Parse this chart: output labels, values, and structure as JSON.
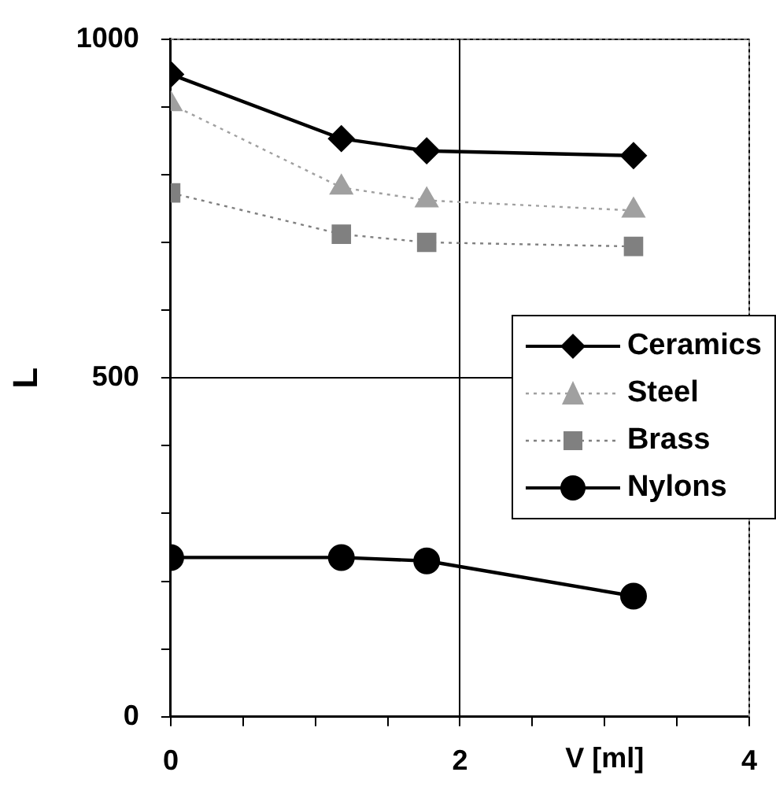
{
  "chart_data": {
    "type": "line",
    "xlabel": "V [ml]",
    "ylabel": "L",
    "x": [
      0,
      1.18,
      1.77,
      3.2
    ],
    "series": [
      {
        "name": "Ceramics",
        "color": "#000000",
        "marker": "diamond",
        "line_style": "solid",
        "values": [
          948,
          853,
          835,
          828
        ]
      },
      {
        "name": "Steel",
        "color": "#a0a0a0",
        "marker": "triangle",
        "line_style": "dotted",
        "values": [
          904,
          781,
          762,
          747
        ]
      },
      {
        "name": "Brass",
        "color": "#808080",
        "marker": "square",
        "line_style": "dotted",
        "values": [
          773,
          712,
          700,
          694
        ]
      },
      {
        "name": "Nylons",
        "color": "#000000",
        "marker": "circle",
        "line_style": "solid",
        "values": [
          235,
          235,
          230,
          178
        ]
      }
    ],
    "xlim": [
      0,
      4
    ],
    "xticks": [
      0,
      {
        "value": 0.5,
        "label": null
      },
      {
        "value": 1,
        "label": null
      },
      {
        "value": 1.5,
        "label": null
      },
      2,
      {
        "value": 2.5,
        "label": null
      },
      {
        "value": 3,
        "label": null
      },
      {
        "value": 3.5,
        "label": null
      },
      4
    ],
    "ylim": [
      0,
      1000
    ],
    "yticks": [
      0,
      {
        "value": 100,
        "label": null
      },
      {
        "value": 200,
        "label": null
      },
      {
        "value": 300,
        "label": null
      },
      {
        "value": 400,
        "label": null
      },
      500,
      {
        "value": 600,
        "label": null
      },
      {
        "value": 700,
        "label": null
      },
      {
        "value": 800,
        "label": null
      },
      {
        "value": 900,
        "label": null
      },
      1000
    ],
    "grid": true,
    "legend": "right"
  }
}
